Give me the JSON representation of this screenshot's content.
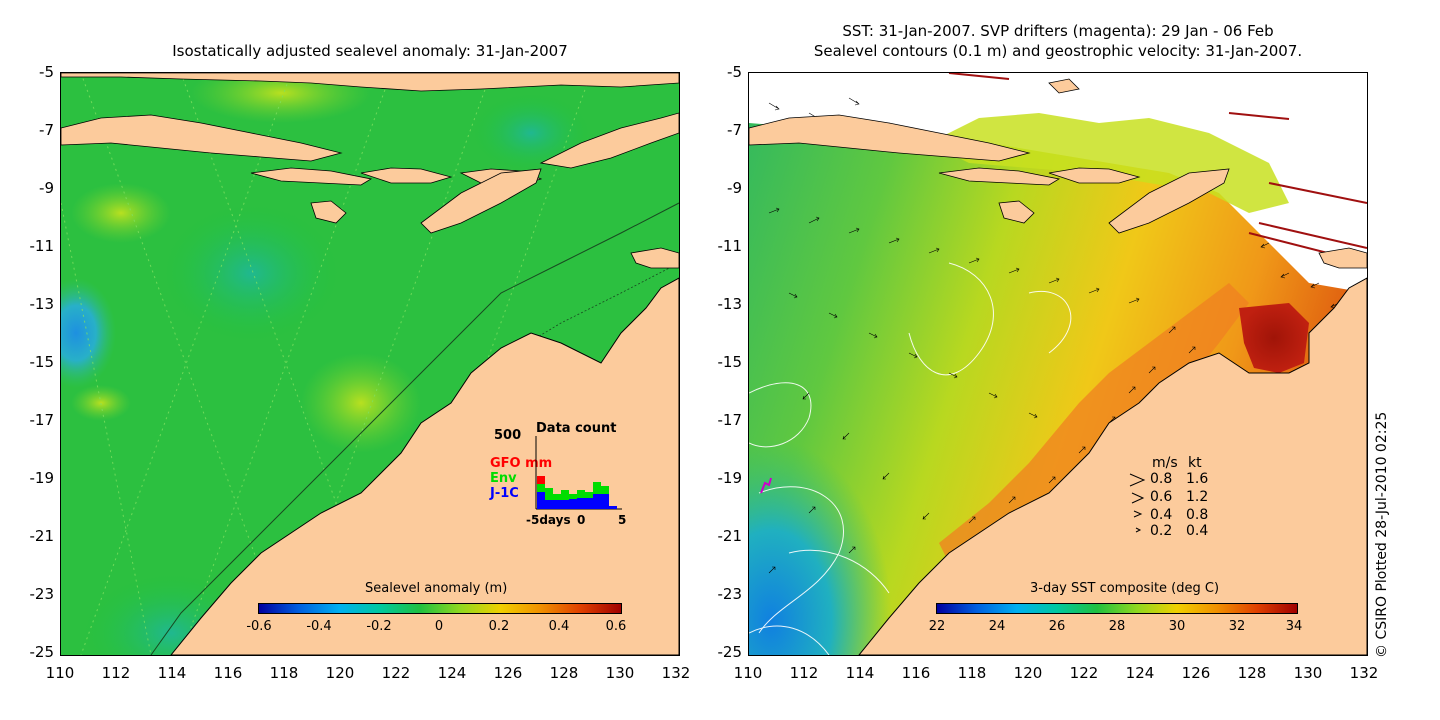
{
  "left_panel": {
    "title": "Isostatically adjusted sealevel anomaly: 31-Jan-2007",
    "y_ticks": [
      "-5",
      "-7",
      "-9",
      "-11",
      "-13",
      "-15",
      "-17",
      "-19",
      "-21",
      "-23",
      "-25"
    ],
    "x_ticks": [
      "110",
      "112",
      "114",
      "116",
      "118",
      "120",
      "122",
      "124",
      "126",
      "128",
      "130",
      "132"
    ],
    "colorbar_title": "Sealevel anomaly (m)",
    "colorbar_ticks": [
      "-0.6",
      "-0.4",
      "-0.2",
      "0",
      "0.2",
      "0.4",
      "0.6"
    ],
    "data_count": {
      "title": "Data count",
      "max_label": "500",
      "legend": [
        {
          "label": "GFO mm",
          "color": "#ff0000"
        },
        {
          "label": "Env",
          "color": "#00dd00"
        },
        {
          "label": "J-1C",
          "color": "#0000ff"
        }
      ],
      "x_labels": [
        "-5days",
        "0",
        "5"
      ]
    }
  },
  "right_panel": {
    "title_line1": "SST: 31-Jan-2007. SVP drifters (magenta): 29 Jan - 06 Feb",
    "title_line2": "Sealevel contours (0.1 m) and geostrophic velocity: 31-Jan-2007.",
    "y_ticks": [
      "-5",
      "-7",
      "-9",
      "-11",
      "-13",
      "-15",
      "-17",
      "-19",
      "-21",
      "-23",
      "-25"
    ],
    "x_ticks": [
      "110",
      "112",
      "114",
      "116",
      "118",
      "120",
      "122",
      "124",
      "126",
      "128",
      "130",
      "132"
    ],
    "colorbar_title": "3-day SST composite (deg C)",
    "colorbar_ticks": [
      "22",
      "24",
      "26",
      "28",
      "30",
      "32",
      "34"
    ],
    "velocity_legend": {
      "header_ms": "m/s",
      "header_kt": "kt",
      "rows": [
        {
          "ms": "0.8",
          "kt": "1.6"
        },
        {
          "ms": "0.6",
          "kt": "1.2"
        },
        {
          "ms": "0.4",
          "kt": "0.8"
        },
        {
          "ms": "0.2",
          "kt": "0.4"
        }
      ]
    }
  },
  "credit": "© CSIRO Plotted 28-Jul-2010 02:25",
  "colors": {
    "land": "#fccb9c",
    "ocean_mid": "#22c23a",
    "warm": "#f0a018",
    "hot": "#a01408"
  }
}
